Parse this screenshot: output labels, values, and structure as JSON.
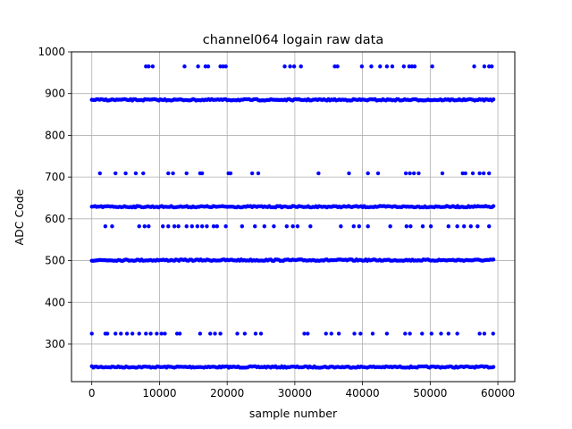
{
  "chart_data": {
    "type": "scatter",
    "title": "channel064 logain raw data",
    "xlabel": "sample number",
    "ylabel": "ADC Code",
    "xlim": [
      -3000,
      62500
    ],
    "ylim": [
      210,
      1000
    ],
    "x_ticks": [
      0,
      10000,
      20000,
      30000,
      40000,
      50000,
      60000
    ],
    "x_tick_labels": [
      "0",
      "10000",
      "20000",
      "30000",
      "40000",
      "50000",
      "60000"
    ],
    "y_ticks": [
      300,
      400,
      500,
      600,
      700,
      800,
      900,
      1000
    ],
    "y_tick_labels": [
      "300",
      "400",
      "500",
      "600",
      "700",
      "800",
      "900",
      "1000"
    ],
    "grid": true,
    "legend": "none",
    "marker_color": "#0000ff",
    "x_range": [
      0,
      59500
    ],
    "dense_levels": [
      245,
      501,
      629,
      885
    ],
    "sparse_levels": [
      {
        "y": 325,
        "x": [
          0,
          2000,
          2300,
          3500,
          4300,
          5200,
          6000,
          7000,
          8000,
          8700,
          9600,
          10300,
          10800,
          12600,
          13000,
          16000,
          17500,
          18200,
          19000,
          21500,
          22600,
          24200,
          25000,
          31400,
          31900,
          34600,
          35400,
          36500,
          38800,
          39700,
          41500,
          43600,
          46300,
          47000,
          48800,
          50200,
          51600,
          52700,
          54000,
          57300,
          58000,
          59300
        ]
      },
      {
        "y": 582,
        "x": [
          2000,
          3000,
          7000,
          7800,
          8400,
          10500,
          11300,
          12200,
          12800,
          14000,
          14800,
          15600,
          16300,
          17000,
          18000,
          18500,
          19800,
          22200,
          24100,
          25500,
          26900,
          28800,
          29700,
          30400,
          32300,
          36800,
          38700,
          39500,
          40800,
          44100,
          46500,
          47100,
          48900,
          50100,
          52700,
          54000,
          55000,
          56000,
          57000,
          58700
        ]
      },
      {
        "y": 709,
        "x": [
          1200,
          3500,
          5000,
          6500,
          7600,
          11300,
          12000,
          14000,
          16000,
          16300,
          20200,
          20500,
          23700,
          24600,
          33500,
          38000,
          40800,
          42300,
          46400,
          47000,
          47600,
          48300,
          51800,
          54800,
          55200,
          56300,
          57300,
          57900,
          58700
        ]
      },
      {
        "y": 965,
        "x": [
          8000,
          8400,
          9000,
          13700,
          15700,
          16800,
          17200,
          19000,
          19400,
          19800,
          28500,
          29300,
          29900,
          30900,
          35900,
          36300,
          39900,
          41300,
          42600,
          43600,
          44400,
          46100,
          46900,
          47300,
          47700,
          50300,
          56500,
          58000,
          58700,
          59100
        ]
      }
    ]
  }
}
